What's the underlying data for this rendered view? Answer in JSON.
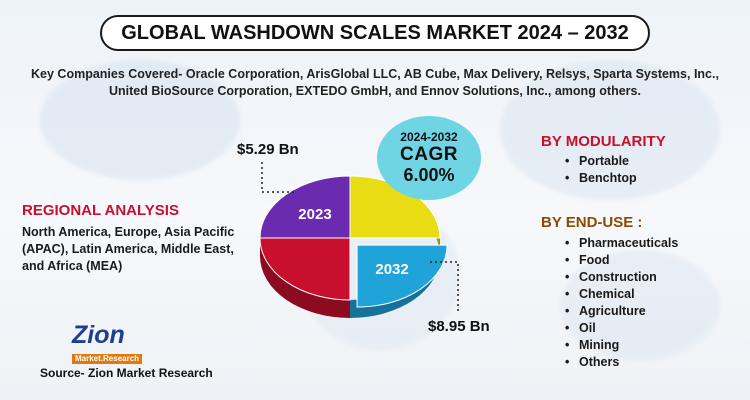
{
  "title": "GLOBAL WASHDOWN SCALES MARKET 2024 – 2032",
  "companies_text": "Key Companies Covered- Oracle Corporation, ArisGlobal LLC, AB Cube, Max Delivery, Relsys, Sparta Systems, Inc., United BioSource Corporation, EXTEDO GmbH, and Ennov Solutions, Inc., among others.",
  "regional": {
    "title": "REGIONAL ANALYSIS",
    "body": "North America, Europe, Asia Pacific (APAC), Latin America, Middle East, and Africa (MEA)"
  },
  "modularity": {
    "title": "BY MODULARITY",
    "items": [
      "Portable",
      "Benchtop"
    ]
  },
  "end_use": {
    "title": "BY END-USE :",
    "items": [
      "Pharmaceuticals",
      "Food",
      "Construction",
      "Chemical",
      "Agriculture",
      "Oil",
      "Mining",
      "Others"
    ]
  },
  "cagr": {
    "period": "2024-2032",
    "label": "CAGR",
    "value": "6.00%"
  },
  "chart_data": {
    "type": "pie",
    "categories": [
      "2023",
      "2032"
    ],
    "values": [
      5.29,
      8.95
    ],
    "value_labels": [
      "$5.29 Bn",
      "$8.95 Bn"
    ],
    "slices": [
      {
        "label": "2023",
        "color": "#6a2bb0"
      },
      {
        "label": "",
        "color": "#e8dc12"
      },
      {
        "label": "2032",
        "color": "#1fa3d9"
      },
      {
        "label": "",
        "color": "#c8102e"
      }
    ]
  },
  "logo": {
    "name": "Zion",
    "sub": "Market.Research"
  },
  "source": "Source- Zion Market Research",
  "colors": {
    "accent_red": "#c8102e",
    "end_use_title": "#8b4a00",
    "cagr_bubble": "#6fd4e3"
  }
}
